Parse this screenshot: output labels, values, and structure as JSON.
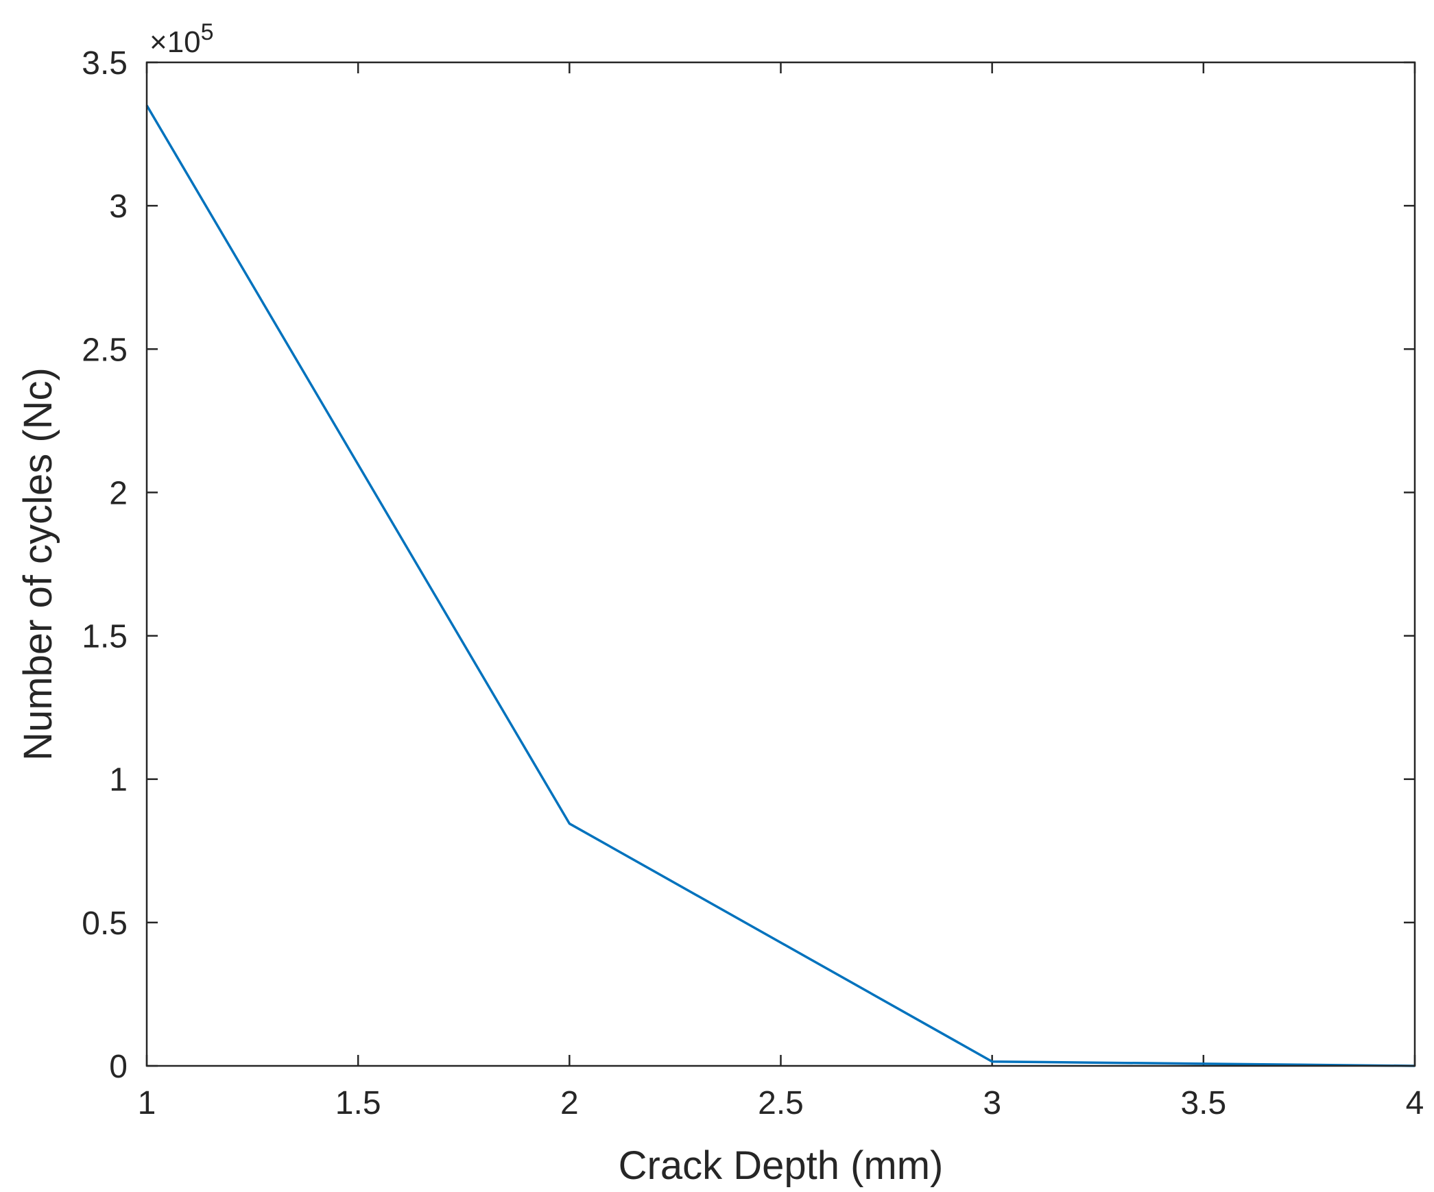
{
  "chart_data": {
    "type": "line",
    "title": "",
    "xlabel": "Crack Depth (mm)",
    "ylabel": "Number of cycles (Nc)",
    "exponent_label": {
      "base": "×10",
      "power": "5"
    },
    "xlim": [
      1,
      4
    ],
    "ylim": [
      0,
      3.5
    ],
    "xticks": [
      "1",
      "1.5",
      "2",
      "2.5",
      "3",
      "3.5",
      "4"
    ],
    "yticks": [
      "0",
      "0.5",
      "1",
      "1.5",
      "2",
      "2.5",
      "3",
      "3.5"
    ],
    "grid": false,
    "series": [
      {
        "color": "#0072BD",
        "x": [
          1,
          2,
          3,
          4
        ],
        "y": [
          3.35,
          0.845,
          0.015,
          0.0
        ],
        "y_multiplier": 100000
      }
    ]
  }
}
